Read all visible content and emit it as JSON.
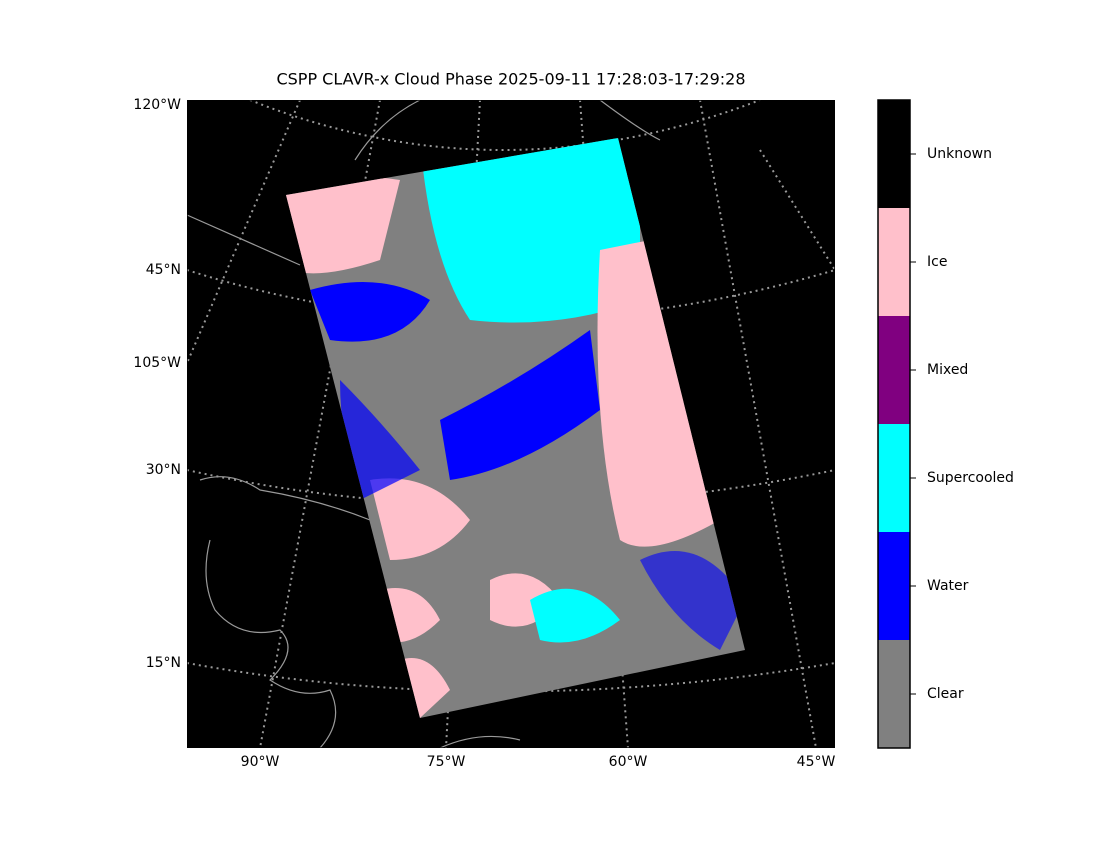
{
  "title": "CSPP CLAVR-x Cloud Phase 2025-09-11 17:28:03-17:29:28",
  "map": {
    "left_labels": [
      "120°W",
      "45°N",
      "105°W",
      "30°N",
      "15°N"
    ],
    "bottom_labels": [
      "90°W",
      "75°W",
      "60°W",
      "45°W"
    ]
  },
  "colorbar": {
    "classes": [
      {
        "name": "Clear",
        "color": "#808080"
      },
      {
        "name": "Water",
        "color": "#0000ff"
      },
      {
        "name": "Supercooled",
        "color": "#00ffff"
      },
      {
        "name": "Mixed",
        "color": "#800080"
      },
      {
        "name": "Ice",
        "color": "#ffc0cb"
      },
      {
        "name": "Unknown",
        "color": "#000000"
      }
    ]
  }
}
